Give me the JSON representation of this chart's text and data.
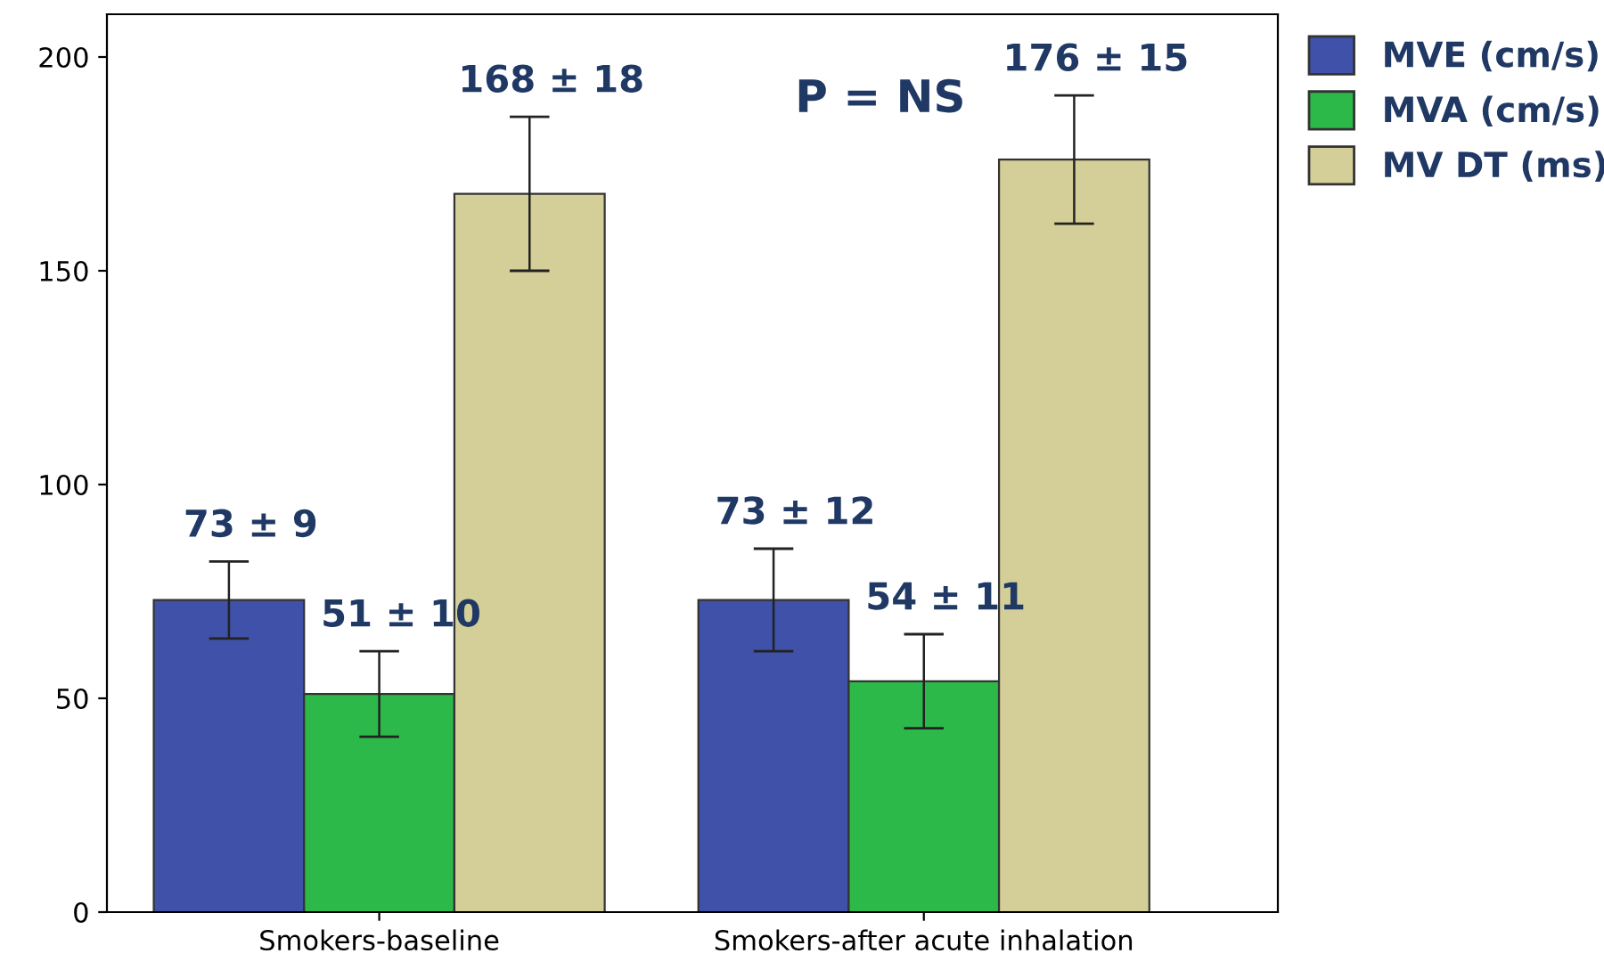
{
  "chart_data": {
    "type": "bar",
    "categories": [
      "Smokers-baseline",
      "Smokers-after acute inhalation"
    ],
    "series": [
      {
        "name": "MVE (cm/s)",
        "color": "#3f51a8",
        "values": [
          73,
          73
        ],
        "errors": [
          9,
          12
        ],
        "value_labels": [
          "73 ± 9",
          "73 ± 12"
        ]
      },
      {
        "name": "MVA (cm/s)",
        "color": "#2db84a",
        "values": [
          51,
          54
        ],
        "errors": [
          10,
          11
        ],
        "value_labels": [
          "51 ± 10",
          "54 ± 11"
        ]
      },
      {
        "name": "MV DT (ms)",
        "color": "#d4cf98",
        "values": [
          168,
          176
        ],
        "errors": [
          18,
          15
        ],
        "value_labels": [
          "168 ± 18",
          "176 ± 15"
        ]
      }
    ],
    "ylim": [
      0,
      210
    ],
    "yticks": [
      0,
      50,
      100,
      150,
      200
    ],
    "grid": false,
    "legend": "top right",
    "annotations": [
      "P = NS"
    ]
  }
}
